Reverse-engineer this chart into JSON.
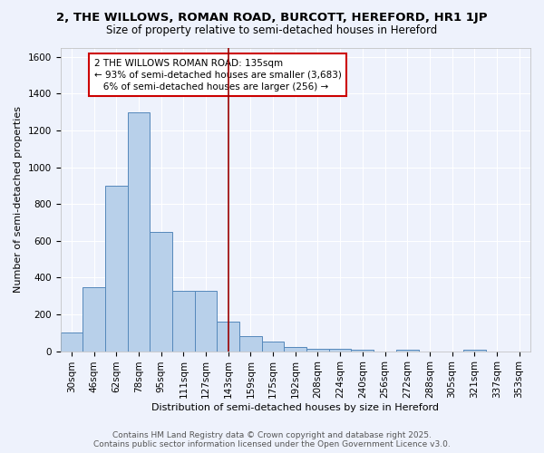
{
  "title": "2, THE WILLOWS, ROMAN ROAD, BURCOTT, HEREFORD, HR1 1JP",
  "subtitle": "Size of property relative to semi-detached houses in Hereford",
  "xlabel": "Distribution of semi-detached houses by size in Hereford",
  "ylabel": "Number of semi-detached properties",
  "categories": [
    "30sqm",
    "46sqm",
    "62sqm",
    "78sqm",
    "95sqm",
    "111sqm",
    "127sqm",
    "143sqm",
    "159sqm",
    "175sqm",
    "192sqm",
    "208sqm",
    "224sqm",
    "240sqm",
    "256sqm",
    "272sqm",
    "288sqm",
    "305sqm",
    "321sqm",
    "337sqm",
    "353sqm"
  ],
  "values": [
    100,
    350,
    900,
    1300,
    650,
    330,
    330,
    160,
    80,
    50,
    25,
    15,
    15,
    10,
    0,
    10,
    0,
    0,
    10,
    0,
    0
  ],
  "bar_color": "#b8d0ea",
  "bar_edge_color": "#5588bb",
  "vline_index": 7,
  "vline_color": "#990000",
  "annotation_text": "2 THE WILLOWS ROMAN ROAD: 135sqm\n← 93% of semi-detached houses are smaller (3,683)\n   6% of semi-detached houses are larger (256) →",
  "annotation_box_facecolor": "#ffffff",
  "annotation_border_color": "#cc0000",
  "ylim": [
    0,
    1650
  ],
  "yticks": [
    0,
    200,
    400,
    600,
    800,
    1000,
    1200,
    1400,
    1600
  ],
  "footer_line1": "Contains HM Land Registry data © Crown copyright and database right 2025.",
  "footer_line2": "Contains public sector information licensed under the Open Government Licence v3.0.",
  "background_color": "#eef2fc",
  "grid_color": "#ffffff",
  "title_fontsize": 9.5,
  "subtitle_fontsize": 8.5,
  "axis_label_fontsize": 8,
  "tick_fontsize": 7.5,
  "annotation_fontsize": 7.5,
  "footer_fontsize": 6.5
}
